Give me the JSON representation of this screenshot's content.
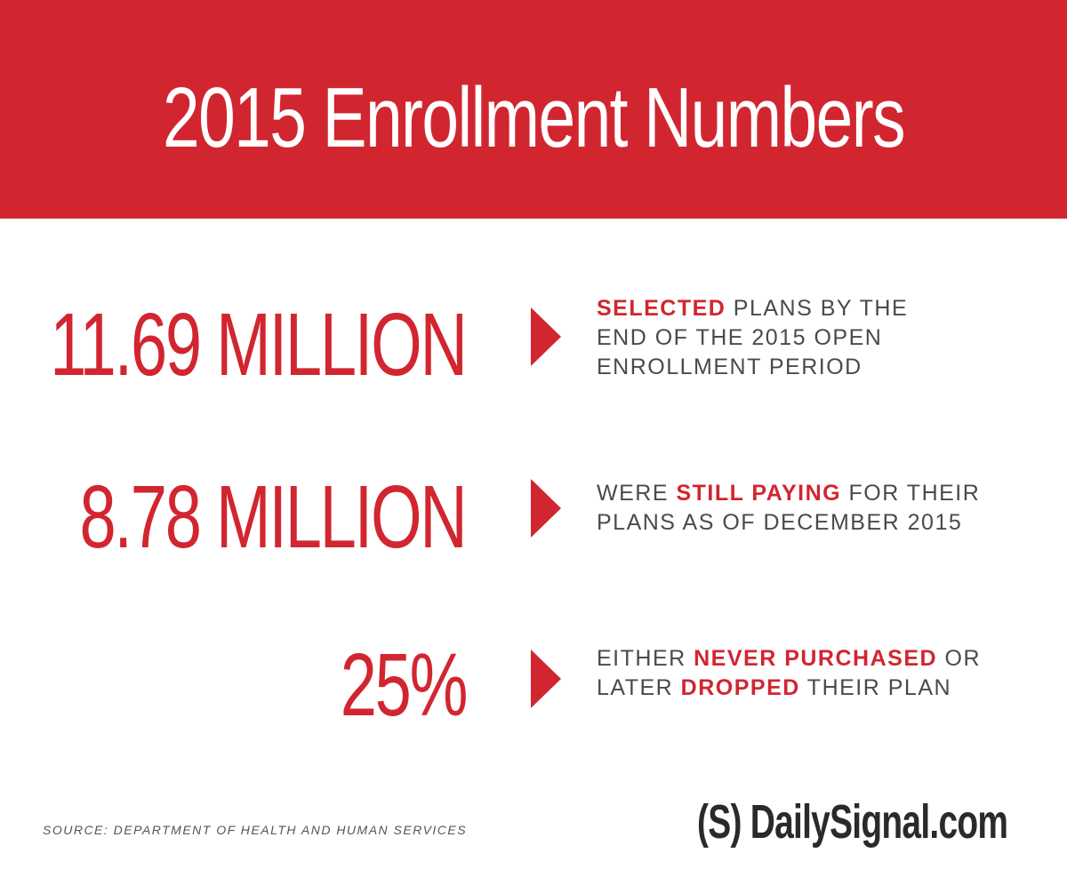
{
  "header": {
    "title": "2015  Enrollment Numbers"
  },
  "stats": [
    {
      "number": "11.69 MILLION",
      "description": {
        "highlight": "SELECTED",
        "line1_rest": " PLANS BY THE",
        "line2": "END OF THE 2015 OPEN",
        "line3": "ENROLLMENT PERIOD"
      }
    },
    {
      "number": "8.78 MILLION",
      "description": {
        "pre": "WERE ",
        "highlight": "STILL PAYING",
        "line1_rest": " FOR THEIR",
        "line2": "PLANS AS OF DECEMBER 2015"
      }
    },
    {
      "number": "25%",
      "description": {
        "pre": "EITHER ",
        "highlight1": "NEVER PURCHASED",
        "mid": " OR",
        "line2_pre": "LATER ",
        "highlight2": "DROPPED",
        "line2_rest": " THEIR PLAN"
      }
    }
  ],
  "footer": {
    "source": "SOURCE: DEPARTMENT OF HEALTH AND HUMAN SERVICES",
    "brand": "(S) DailySignal.com"
  },
  "colors": {
    "accent": "#d12630",
    "text": "#4a4a4a",
    "background": "#ffffff"
  },
  "icons": {
    "arrow": "caret-right-icon"
  }
}
